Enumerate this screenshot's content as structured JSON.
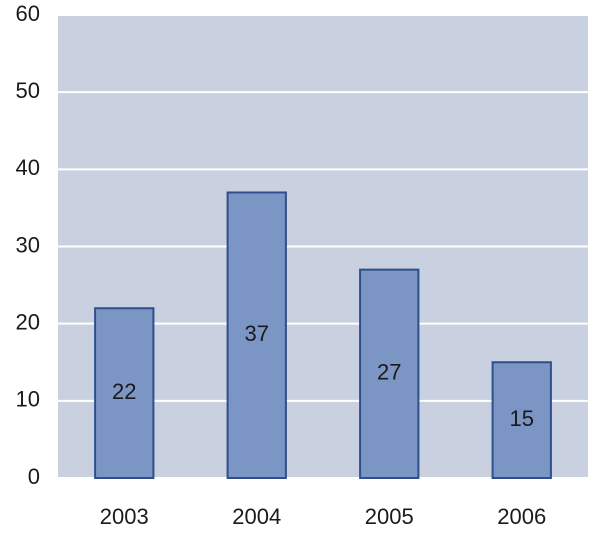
{
  "chart_data": {
    "type": "bar",
    "categories": [
      "2003",
      "2004",
      "2005",
      "2006"
    ],
    "values": [
      22,
      37,
      27,
      15
    ],
    "color": "#7b96c4",
    "ylim": [
      0,
      60
    ],
    "yticks": [
      0,
      10,
      20,
      30,
      40,
      50,
      60
    ],
    "grid": true
  }
}
